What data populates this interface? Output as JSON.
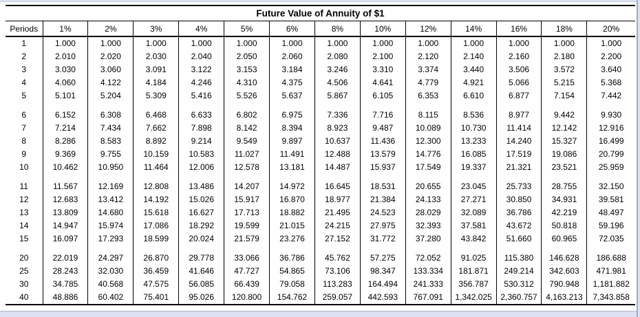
{
  "page": {
    "title": "Future Value of Annuity of $1"
  },
  "colors": {
    "window_background": "#dce2f1",
    "table_border": "#000000",
    "page_background": "#ffffff"
  },
  "table": {
    "row_header": "Periods",
    "columns": [
      "1%",
      "2%",
      "3%",
      "4%",
      "5%",
      "6%",
      "8%",
      "10%",
      "12%",
      "14%",
      "16%",
      "18%",
      "20%"
    ],
    "groups": [
      {
        "rows": [
          {
            "period": "1",
            "values": [
              "1.000",
              "1.000",
              "1.000",
              "1.000",
              "1.000",
              "1.000",
              "1.000",
              "1.000",
              "1.000",
              "1.000",
              "1.000",
              "1.000",
              "1.000"
            ]
          },
          {
            "period": "2",
            "values": [
              "2.010",
              "2.020",
              "2.030",
              "2.040",
              "2.050",
              "2.060",
              "2.080",
              "2.100",
              "2.120",
              "2.140",
              "2.160",
              "2.180",
              "2.200"
            ]
          },
          {
            "period": "3",
            "values": [
              "3.030",
              "3.060",
              "3.091",
              "3.122",
              "3.153",
              "3.184",
              "3.246",
              "3.310",
              "3.374",
              "3.440",
              "3.506",
              "3.572",
              "3.640"
            ]
          },
          {
            "period": "4",
            "values": [
              "4.060",
              "4.122",
              "4.184",
              "4.246",
              "4.310",
              "4.375",
              "4.506",
              "4.641",
              "4.779",
              "4.921",
              "5.066",
              "5.215",
              "5.368"
            ]
          },
          {
            "period": "5",
            "values": [
              "5.101",
              "5.204",
              "5.309",
              "5.416",
              "5.526",
              "5.637",
              "5.867",
              "6.105",
              "6.353",
              "6.610",
              "6.877",
              "7.154",
              "7.442"
            ]
          }
        ]
      },
      {
        "rows": [
          {
            "period": "6",
            "values": [
              "6.152",
              "6.308",
              "6.468",
              "6.633",
              "6.802",
              "6.975",
              "7.336",
              "7.716",
              "8.115",
              "8.536",
              "8.977",
              "9.442",
              "9.930"
            ]
          },
          {
            "period": "7",
            "values": [
              "7.214",
              "7.434",
              "7.662",
              "7.898",
              "8.142",
              "8.394",
              "8.923",
              "9.487",
              "10.089",
              "10.730",
              "11.414",
              "12.142",
              "12.916"
            ]
          },
          {
            "period": "8",
            "values": [
              "8.286",
              "8.583",
              "8.892",
              "9.214",
              "9.549",
              "9.897",
              "10.637",
              "11.436",
              "12.300",
              "13.233",
              "14.240",
              "15.327",
              "16.499"
            ]
          },
          {
            "period": "9",
            "values": [
              "9.369",
              "9.755",
              "10.159",
              "10.583",
              "11.027",
              "11.491",
              "12.488",
              "13.579",
              "14.776",
              "16.085",
              "17.519",
              "19.086",
              "20.799"
            ]
          },
          {
            "period": "10",
            "values": [
              "10.462",
              "10.950",
              "11.464",
              "12.006",
              "12.578",
              "13.181",
              "14.487",
              "15.937",
              "17.549",
              "19.337",
              "21.321",
              "23.521",
              "25.959"
            ]
          }
        ]
      },
      {
        "rows": [
          {
            "period": "11",
            "values": [
              "11.567",
              "12.169",
              "12.808",
              "13.486",
              "14.207",
              "14.972",
              "16.645",
              "18.531",
              "20.655",
              "23.045",
              "25.733",
              "28.755",
              "32.150"
            ]
          },
          {
            "period": "12",
            "values": [
              "12.683",
              "13.412",
              "14.192",
              "15.026",
              "15.917",
              "16.870",
              "18.977",
              "21.384",
              "24.133",
              "27.271",
              "30.850",
              "34.931",
              "39.581"
            ]
          },
          {
            "period": "13",
            "values": [
              "13.809",
              "14.680",
              "15.618",
              "16.627",
              "17.713",
              "18.882",
              "21.495",
              "24.523",
              "28.029",
              "32.089",
              "36.786",
              "42.219",
              "48.497"
            ]
          },
          {
            "period": "14",
            "values": [
              "14.947",
              "15.974",
              "17.086",
              "18.292",
              "19.599",
              "21.015",
              "24.215",
              "27.975",
              "32.393",
              "37.581",
              "43.672",
              "50.818",
              "59.196"
            ]
          },
          {
            "period": "15",
            "values": [
              "16.097",
              "17.293",
              "18.599",
              "20.024",
              "21.579",
              "23.276",
              "27.152",
              "31.772",
              "37.280",
              "43.842",
              "51.660",
              "60.965",
              "72.035"
            ]
          }
        ]
      },
      {
        "rows": [
          {
            "period": "20",
            "values": [
              "22.019",
              "24.297",
              "26.870",
              "29.778",
              "33.066",
              "36.786",
              "45.762",
              "57.275",
              "72.052",
              "91.025",
              "115.380",
              "146.628",
              "186.688"
            ]
          },
          {
            "period": "25",
            "values": [
              "28.243",
              "32.030",
              "36.459",
              "41.646",
              "47.727",
              "54.865",
              "73.106",
              "98.347",
              "133.334",
              "181.871",
              "249.214",
              "342.603",
              "471.981"
            ]
          },
          {
            "period": "30",
            "values": [
              "34.785",
              "40.568",
              "47.575",
              "56.085",
              "66.439",
              "79.058",
              "113.283",
              "164.494",
              "241.333",
              "356.787",
              "530.312",
              "790.948",
              "1,181.882"
            ]
          },
          {
            "period": "40",
            "values": [
              "48.886",
              "60.402",
              "75.401",
              "95.026",
              "120.800",
              "154.762",
              "259.057",
              "442.593",
              "767.091",
              "1,342.025",
              "2,360.757",
              "4,163.213",
              "7,343.858"
            ]
          }
        ]
      }
    ]
  }
}
